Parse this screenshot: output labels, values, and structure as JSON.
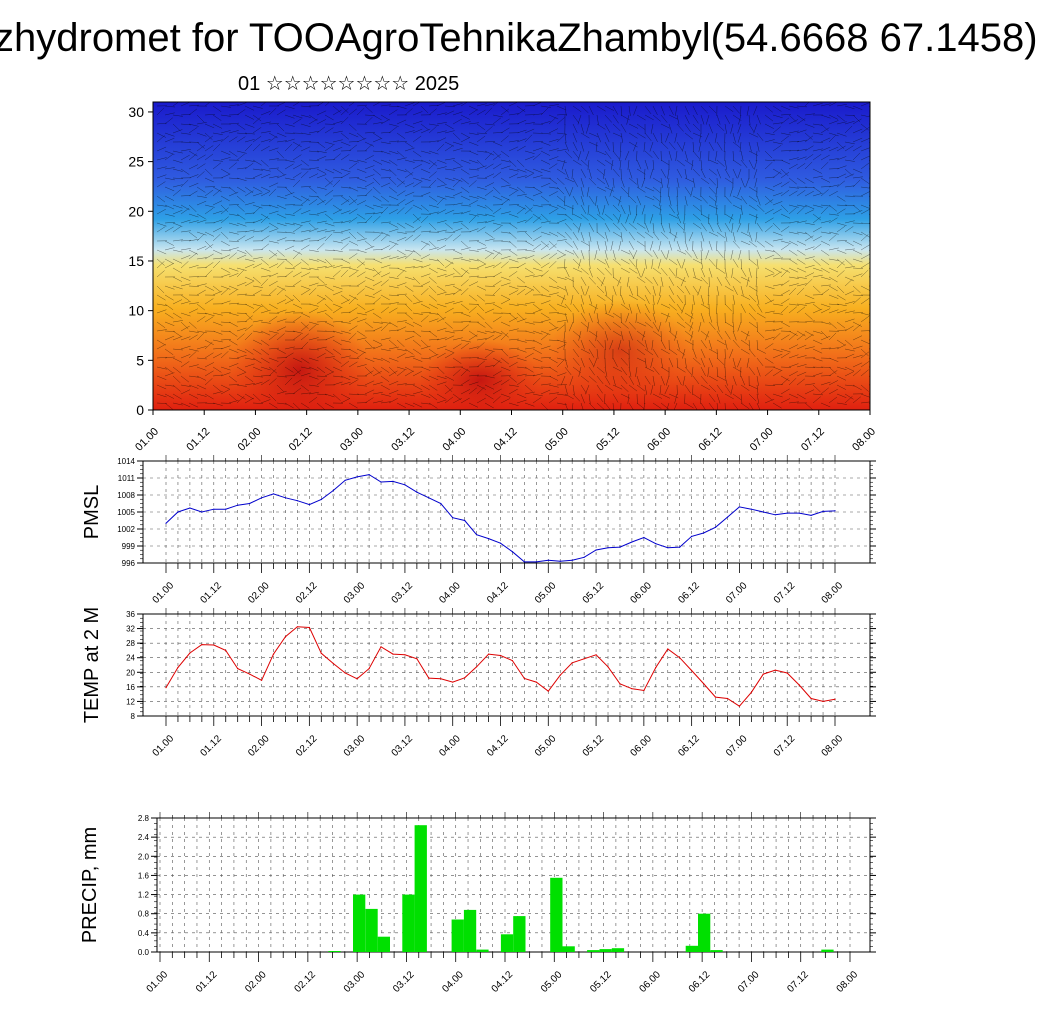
{
  "title": "zhydromet for TOOAgroTehnikaZhambyl(54.6668 67.1458)",
  "subtitle": "01 ☆☆☆☆☆☆☆☆ 2025",
  "time_ticks": [
    "01.00",
    "01.12",
    "02.00",
    "02.12",
    "03.00",
    "03.12",
    "04.00",
    "04.12",
    "05.00",
    "05.12",
    "06.00",
    "06.12",
    "07.00",
    "07.12",
    "08.00"
  ],
  "chart_data": [
    {
      "type": "heatmap",
      "name": "cross-section",
      "xlabel": "",
      "ylabel": "",
      "x_ticks": [
        "01.00",
        "01.12",
        "02.00",
        "02.12",
        "03.00",
        "03.12",
        "04.00",
        "04.12",
        "05.00",
        "05.12",
        "06.00",
        "06.12",
        "07.00",
        "07.12",
        "08.00"
      ],
      "y_ticks": [
        0,
        5,
        10,
        15,
        20,
        25,
        30
      ],
      "ylim": [
        0,
        31
      ],
      "color_scale": [
        "#1a1acc",
        "#2f5be0",
        "#2ea0e6",
        "#c9e6f0",
        "#f6e070",
        "#f8b020",
        "#f2701a",
        "#e02010"
      ],
      "overlay": "wind barbs and contour lines"
    },
    {
      "type": "line",
      "name": "pmsl",
      "ylabel": "PMSL",
      "ylim": [
        996,
        1014
      ],
      "y_ticks": [
        996,
        999,
        1002,
        1005,
        1008,
        1011,
        1014
      ],
      "x_ticks": [
        "01.00",
        "01.12",
        "02.00",
        "02.12",
        "03.00",
        "03.12",
        "04.00",
        "04.12",
        "05.00",
        "05.12",
        "06.00",
        "06.12",
        "07.00",
        "07.12",
        "08.00"
      ],
      "color": "#0000cc",
      "x": [
        0,
        3,
        6,
        9,
        12,
        15,
        18,
        21,
        24,
        27,
        30,
        33,
        36,
        39,
        42,
        45,
        48,
        51,
        54,
        57,
        60,
        63,
        66,
        69,
        72,
        75,
        78,
        81,
        84,
        87,
        90,
        93,
        96,
        99,
        102,
        105,
        108,
        111,
        114,
        117,
        120,
        123,
        126,
        129,
        132,
        135,
        138,
        141,
        144,
        147,
        150,
        153,
        156,
        159,
        162,
        165,
        168
      ],
      "values": [
        1003,
        1005,
        1005.7,
        1005,
        1005.5,
        1005.5,
        1006.2,
        1006.5,
        1007.5,
        1008.2,
        1007.5,
        1007,
        1006.3,
        1007.2,
        1008.8,
        1010.6,
        1011.2,
        1011.6,
        1010.3,
        1010.4,
        1009.8,
        1008.5,
        1007.5,
        1006.5,
        1004,
        1003.5,
        1001,
        1000.3,
        999.5,
        998,
        996.2,
        996.2,
        996.5,
        996.3,
        996.5,
        997,
        998.3,
        998.7,
        998.8,
        999.7,
        1000.5,
        999.4,
        998.7,
        998.8,
        1000.7,
        1001.3,
        1002.3,
        1004.1,
        1005.9,
        1005.5,
        1005,
        1004.5,
        1004.8,
        1004.8,
        1004.4,
        1005.1,
        1005.2
      ]
    },
    {
      "type": "line",
      "name": "temp",
      "ylabel": "TEMP at 2 M",
      "ylim": [
        8,
        36
      ],
      "y_ticks": [
        8,
        12,
        16,
        20,
        24,
        28,
        32,
        36
      ],
      "x_ticks": [
        "01.00",
        "01.12",
        "02.00",
        "02.12",
        "03.00",
        "03.12",
        "04.00",
        "04.12",
        "05.00",
        "05.12",
        "06.00",
        "06.12",
        "07.00",
        "07.12",
        "08.00"
      ],
      "color": "#dd0000",
      "x": [
        0,
        3,
        6,
        9,
        12,
        15,
        18,
        21,
        24,
        27,
        30,
        33,
        36,
        39,
        42,
        45,
        48,
        51,
        54,
        57,
        60,
        63,
        66,
        69,
        72,
        75,
        78,
        81,
        84,
        87,
        90,
        93,
        96,
        99,
        102,
        105,
        108,
        111,
        114,
        117,
        120,
        123,
        126,
        129,
        132,
        135,
        138,
        141,
        144,
        147,
        150,
        153,
        156,
        159,
        162,
        165,
        168
      ],
      "values": [
        15.8,
        21.3,
        25.3,
        27.6,
        27.5,
        26,
        21,
        19.5,
        17.8,
        25,
        29.8,
        32.5,
        32.3,
        25.2,
        22.4,
        19.8,
        18.2,
        21,
        27,
        25,
        24.8,
        23.7,
        18.4,
        18.2,
        17.3,
        18.5,
        21.5,
        25,
        24.6,
        23.2,
        18.3,
        17.3,
        14.8,
        19.2,
        22.6,
        23.7,
        24.8,
        21.5,
        16.8,
        15.5,
        15,
        21.3,
        26.4,
        24,
        20.5,
        16.9,
        13.2,
        12.8,
        10.7,
        14.5,
        19.5,
        20.6,
        19.8,
        16.5,
        12.8,
        12,
        12.6
      ]
    },
    {
      "type": "bar",
      "name": "precip",
      "ylabel": "PRECIP, mm",
      "ylim": [
        0,
        2.8
      ],
      "y_ticks": [
        "0.0",
        "0.4",
        "0.8",
        "1.2",
        "1.6",
        "2.0",
        "2.4",
        "2.8"
      ],
      "x_ticks": [
        "01.00",
        "01.12",
        "02.00",
        "02.12",
        "03.00",
        "03.12",
        "04.00",
        "04.12",
        "05.00",
        "05.12",
        "06.00",
        "06.12",
        "07.00",
        "07.12",
        "08.00"
      ],
      "color": "#00e000",
      "bar_hours": 3,
      "x": [
        39,
        42,
        45,
        48,
        51,
        54,
        57,
        60,
        63,
        66,
        69,
        72,
        75,
        78,
        81,
        84,
        87,
        90,
        93,
        96,
        99,
        102,
        105,
        108,
        111,
        114,
        117,
        120,
        123,
        126,
        129,
        132,
        135,
        138,
        141,
        144,
        147,
        150,
        153,
        156,
        159,
        162,
        165,
        168
      ],
      "values": [
        0,
        0.02,
        0,
        1.2,
        0.9,
        0.32,
        0,
        1.2,
        2.65,
        0,
        0,
        0.68,
        0.88,
        0.05,
        0,
        0.37,
        0.75,
        0,
        0,
        1.55,
        0.12,
        0,
        0.04,
        0.06,
        0.08,
        0,
        0,
        0,
        0,
        0,
        0.13,
        0.8,
        0.04,
        0,
        0,
        0,
        0,
        0,
        0,
        0,
        0,
        0.05,
        0,
        0
      ]
    }
  ]
}
